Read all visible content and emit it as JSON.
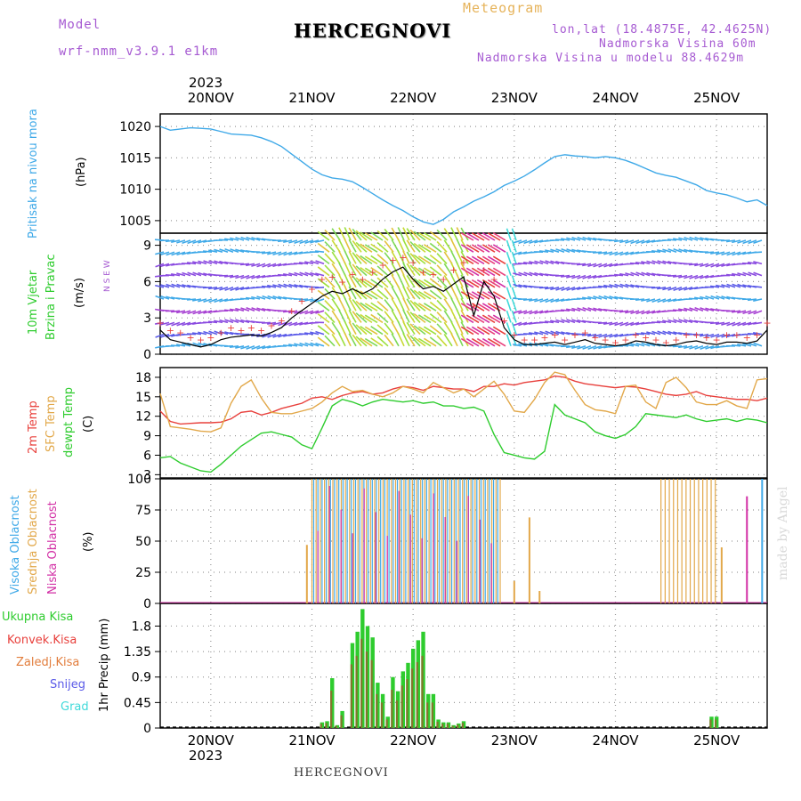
{
  "header": {
    "model_label": "Model",
    "model_name": "wrf-nmm_v3.9.1 e1km",
    "station": "HERCEGNOVI",
    "meteogram": "Meteogram",
    "lonlat": "lon,lat (18.4875E, 42.4625N)",
    "altitude": "Nadmorska Visina 60m",
    "model_altitude": "Nadmorska Visina u modelu 88.4629m"
  },
  "top_axis": {
    "year": "2023",
    "days": [
      "20NOV",
      "21NOV",
      "22NOV",
      "23NOV",
      "24NOV",
      "25NOV"
    ]
  },
  "bottom_axis": {
    "year": "2023",
    "days": [
      "20NOV",
      "21NOV",
      "22NOV",
      "23NOV",
      "24NOV",
      "25NOV"
    ]
  },
  "footer": {
    "station": "HERCEGNOVI",
    "made_by": "made by Angel"
  },
  "panel_labels": {
    "pressure": {
      "name": "Pritisak na nivou mora",
      "unit": "(hPa)"
    },
    "wind": {
      "name1": "10m Vjetar",
      "name2": "Brzina i Pravac",
      "unit": "(m/s)",
      "compass": "N  S  E  W"
    },
    "temp": {
      "t2m": "2m Temp",
      "sfc": "SFC Temp",
      "dew": "dewpt Temp",
      "unit": "(C)"
    },
    "cloud": {
      "high": "Visoka Oblacnost",
      "mid": "Srednja Oblacnost",
      "low": "Niska Oblacnost",
      "unit": "(%)"
    },
    "precip": {
      "total": "Ukupna Kisa",
      "conv": "Konvek.Kisa",
      "frz": "Zaledj.Kisa",
      "snow": "Snijeg",
      "hail": "Grad",
      "ylabel": "1hr Precip (mm)"
    }
  },
  "colors": {
    "pressure": "#3fa9e8",
    "t2m": "#e8403c",
    "sfc": "#e2a84a",
    "dew": "#2ecc2e",
    "high": "#3fa9e8",
    "mid": "#e2a84a",
    "low": "#d22fa5",
    "precip_total": "#2ecc2e",
    "precip_conv": "#e8403c",
    "grid": "#999999"
  },
  "chart_data": [
    {
      "type": "line",
      "name": "pressure",
      "ylabel": "(hPa)",
      "ylim": [
        1003,
        1022
      ],
      "yticks": [
        1005,
        1010,
        1015,
        1020
      ],
      "x_days": [
        -0.5,
        -0.4,
        -0.3,
        -0.2,
        -0.1,
        0,
        0.1,
        0.2,
        0.3,
        0.4,
        0.5,
        0.6,
        0.7,
        0.8,
        0.9,
        1.0,
        1.1,
        1.2,
        1.3,
        1.4,
        1.5,
        1.6,
        1.7,
        1.8,
        1.9,
        2.0,
        2.1,
        2.2,
        2.3,
        2.4,
        2.5,
        2.6,
        2.7,
        2.8,
        2.9,
        3.0,
        3.1,
        3.2,
        3.3,
        3.4,
        3.5,
        3.6,
        3.7,
        3.8,
        3.9,
        4.0,
        4.1,
        4.2,
        4.3,
        4.4,
        4.5,
        4.6,
        4.7,
        4.8,
        4.9,
        5.0,
        5.1,
        5.2,
        5.3,
        5.4,
        5.5
      ],
      "values": [
        1020,
        1019.4,
        1019.6,
        1019.8,
        1019.7,
        1019.6,
        1019.2,
        1018.8,
        1018.7,
        1018.6,
        1018.2,
        1017.6,
        1016.8,
        1015.6,
        1014.4,
        1013.2,
        1012.3,
        1011.8,
        1011.6,
        1011.2,
        1010.3,
        1009.3,
        1008.3,
        1007.4,
        1006.6,
        1005.6,
        1004.8,
        1004.4,
        1005.2,
        1006.4,
        1007.2,
        1008.1,
        1008.8,
        1009.6,
        1010.6,
        1011.3,
        1012.1,
        1013.1,
        1014.2,
        1015.2,
        1015.5,
        1015.3,
        1015.2,
        1015.0,
        1015.2,
        1015.0,
        1014.6,
        1014.0,
        1013.3,
        1012.6,
        1012.2,
        1011.9,
        1011.3,
        1010.7,
        1009.8,
        1009.4,
        1009.1,
        1008.6,
        1008.0,
        1008.3,
        1007.4
      ]
    },
    {
      "type": "line",
      "name": "wind",
      "ylabel": "(m/s)",
      "ylim": [
        0,
        10
      ],
      "yticks": [
        0,
        3,
        6,
        9
      ],
      "x_days": [
        -0.5,
        -0.4,
        -0.3,
        -0.2,
        -0.1,
        0,
        0.1,
        0.2,
        0.3,
        0.4,
        0.5,
        0.6,
        0.7,
        0.8,
        0.9,
        1.0,
        1.1,
        1.2,
        1.3,
        1.4,
        1.5,
        1.6,
        1.7,
        1.8,
        1.9,
        2.0,
        2.1,
        2.2,
        2.3,
        2.4,
        2.5,
        2.6,
        2.7,
        2.8,
        2.9,
        3.0,
        3.1,
        3.2,
        3.3,
        3.4,
        3.5,
        3.6,
        3.7,
        3.8,
        3.9,
        4.0,
        4.1,
        4.2,
        4.3,
        4.4,
        4.5,
        4.6,
        4.7,
        4.8,
        4.9,
        5.0,
        5.1,
        5.2,
        5.3,
        5.4,
        5.5
      ],
      "speed": [
        2.0,
        1.2,
        1.0,
        0.8,
        0.6,
        0.8,
        1.2,
        1.4,
        1.5,
        1.6,
        1.5,
        1.8,
        2.2,
        3.0,
        3.6,
        4.2,
        4.8,
        5.2,
        5.0,
        5.4,
        5.0,
        5.4,
        6.2,
        6.8,
        7.2,
        6.2,
        5.4,
        5.6,
        5.2,
        5.8,
        6.4,
        3.2,
        6.0,
        4.8,
        2.2,
        1.2,
        0.8,
        0.8,
        0.9,
        1.0,
        0.8,
        1.0,
        1.2,
        0.9,
        0.8,
        0.7,
        0.8,
        1.1,
        1.0,
        0.8,
        0.7,
        0.8,
        1.0,
        1.1,
        0.9,
        0.8,
        1.0,
        1.0,
        0.9,
        1.1,
        2.0
      ],
      "gust": [
        2.6,
        2.0,
        1.8,
        1.4,
        1.2,
        1.4,
        1.8,
        2.2,
        2.0,
        2.2,
        2.0,
        2.4,
        2.8,
        3.6,
        4.4,
        5.4,
        6.2,
        6.4,
        6.0,
        6.6,
        6.2,
        6.8,
        7.4,
        7.8,
        8.0,
        7.6,
        6.8,
        6.6,
        6.2,
        7.0,
        7.6,
        4.0,
        7.0,
        6.2,
        2.8,
        1.6,
        1.2,
        1.2,
        1.4,
        1.6,
        1.2,
        1.6,
        1.8,
        1.4,
        1.2,
        1.0,
        1.2,
        1.6,
        1.4,
        1.2,
        1.0,
        1.2,
        1.6,
        1.6,
        1.4,
        1.2,
        1.6,
        1.6,
        1.4,
        1.6,
        2.6
      ]
    },
    {
      "type": "line",
      "name": "temperature",
      "ylabel": "(C)",
      "ylim": [
        2.5,
        19.5
      ],
      "yticks": [
        3,
        6,
        9,
        12,
        15,
        18
      ],
      "x_days": [
        -0.5,
        -0.4,
        -0.3,
        -0.2,
        -0.1,
        0,
        0.1,
        0.2,
        0.3,
        0.4,
        0.5,
        0.6,
        0.7,
        0.8,
        0.9,
        1.0,
        1.1,
        1.2,
        1.3,
        1.4,
        1.5,
        1.6,
        1.7,
        1.8,
        1.9,
        2.0,
        2.1,
        2.2,
        2.3,
        2.4,
        2.5,
        2.6,
        2.7,
        2.8,
        2.9,
        3.0,
        3.1,
        3.2,
        3.3,
        3.4,
        3.5,
        3.6,
        3.7,
        3.8,
        3.9,
        4.0,
        4.1,
        4.2,
        4.3,
        4.4,
        4.5,
        4.6,
        4.7,
        4.8,
        4.9,
        5.0,
        5.1,
        5.2,
        5.3,
        5.4,
        5.5
      ],
      "series": [
        {
          "name": "2m Temp",
          "values": [
            12.8,
            11.2,
            10.8,
            10.9,
            11.0,
            11.0,
            11.1,
            11.6,
            12.6,
            12.8,
            12.2,
            12.6,
            13.2,
            13.6,
            14.0,
            14.8,
            15.0,
            14.6,
            15.2,
            15.6,
            15.8,
            15.4,
            15.6,
            16.2,
            16.6,
            16.4,
            16.0,
            16.6,
            16.4,
            16.2,
            16.2,
            15.8,
            16.6,
            16.6,
            17.0,
            16.8,
            17.2,
            17.4,
            17.6,
            18.2,
            18.0,
            17.4,
            17.0,
            16.8,
            16.6,
            16.4,
            16.6,
            16.5,
            16.2,
            15.8,
            15.4,
            15.2,
            15.4,
            15.8,
            15.2,
            15.0,
            14.8,
            14.6,
            14.6,
            14.4,
            14.8
          ]
        },
        {
          "name": "SFC Temp",
          "values": [
            15.5,
            10.4,
            10.2,
            10.0,
            9.7,
            9.6,
            10.2,
            14.0,
            16.6,
            17.6,
            14.8,
            12.6,
            12.4,
            12.4,
            12.8,
            13.2,
            14.2,
            15.6,
            16.6,
            15.8,
            16.0,
            15.4,
            15.0,
            15.6,
            16.6,
            16.2,
            15.6,
            17.2,
            16.4,
            15.6,
            16.2,
            15.0,
            16.2,
            17.4,
            15.4,
            12.8,
            12.6,
            14.6,
            17.2,
            18.8,
            18.4,
            16.0,
            13.8,
            13.0,
            12.8,
            12.4,
            16.6,
            16.8,
            14.2,
            13.2,
            17.2,
            18.0,
            16.4,
            14.2,
            13.8,
            13.8,
            14.4,
            13.6,
            13.2,
            17.6,
            17.8
          ]
        },
        {
          "name": "dewpt Temp",
          "values": [
            5.6,
            5.8,
            4.8,
            4.2,
            3.6,
            3.4,
            4.6,
            6.0,
            7.4,
            8.4,
            9.4,
            9.6,
            9.2,
            8.8,
            7.6,
            7.0,
            10.2,
            13.6,
            14.6,
            14.2,
            13.6,
            14.2,
            14.6,
            14.4,
            14.2,
            14.4,
            14.0,
            14.2,
            13.6,
            13.6,
            13.2,
            13.4,
            12.8,
            9.2,
            6.4,
            6.0,
            5.6,
            5.4,
            6.6,
            13.8,
            12.2,
            11.6,
            11.0,
            9.6,
            9.0,
            8.6,
            9.2,
            10.4,
            12.4,
            12.2,
            12.0,
            11.8,
            12.2,
            11.6,
            11.2,
            11.4,
            11.6,
            11.2,
            11.6,
            11.4,
            11.0
          ]
        }
      ]
    },
    {
      "type": "bar",
      "name": "cloud",
      "ylabel": "(%)",
      "ylim": [
        0,
        100
      ],
      "yticks": [
        0,
        25,
        50,
        75,
        100
      ],
      "bands": [
        {
          "name": "Srednja Oblacnost",
          "from_day": 1.0,
          "to_day": 2.9,
          "value": 100
        },
        {
          "name": "Srednja Oblacnost",
          "from_day": 4.45,
          "to_day": 5.0,
          "value": 100
        },
        {
          "name": "Visoka Oblacnost",
          "from_day": 1.0,
          "to_day": 2.85,
          "value": 100
        }
      ],
      "isolated": [
        {
          "day": 0.95,
          "value": 47,
          "series": "Srednja Oblacnost"
        },
        {
          "day": 3.15,
          "value": 69,
          "series": "Srednja Oblacnost"
        },
        {
          "day": 3.0,
          "value": 18,
          "series": "Srednja Oblacnost"
        },
        {
          "day": 3.25,
          "value": 10,
          "series": "Srednja Oblacnost"
        },
        {
          "day": 5.05,
          "value": 45,
          "series": "Srednja Oblacnost"
        },
        {
          "day": 5.3,
          "value": 86,
          "series": "Niska Oblacnost"
        },
        {
          "day": 5.45,
          "value": 100,
          "series": "Visoka Oblacnost"
        }
      ]
    },
    {
      "type": "bar",
      "name": "precip",
      "ylabel": "1hr Precip (mm)",
      "ylim": [
        0,
        2.2
      ],
      "yticks": [
        "0",
        "0.45",
        "0.9",
        "1.35",
        "1.8"
      ],
      "x_days": [
        1.1,
        1.15,
        1.2,
        1.25,
        1.3,
        1.35,
        1.4,
        1.45,
        1.5,
        1.55,
        1.6,
        1.65,
        1.7,
        1.75,
        1.8,
        1.85,
        1.9,
        1.95,
        2.0,
        2.05,
        2.1,
        2.15,
        2.2,
        2.25,
        2.3,
        2.35,
        2.4,
        2.45,
        2.5,
        4.95,
        5.0
      ],
      "values": [
        0.1,
        0.12,
        0.88,
        0.05,
        0.3,
        0.0,
        1.5,
        1.7,
        2.1,
        1.8,
        1.6,
        0.8,
        0.6,
        0.2,
        0.9,
        0.65,
        1.0,
        1.15,
        1.4,
        1.55,
        1.7,
        0.6,
        0.6,
        0.15,
        0.1,
        0.1,
        0.05,
        0.08,
        0.12,
        0.2,
        0.2
      ]
    }
  ]
}
